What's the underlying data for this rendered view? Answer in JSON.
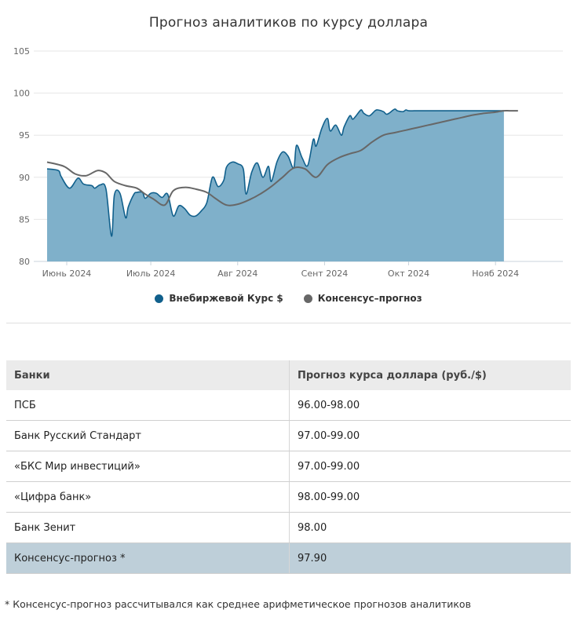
{
  "chart_data": {
    "type": "area+line",
    "title": "Прогноз аналитиков по курсу доллара",
    "ylim": [
      80,
      105
    ],
    "y_ticks": [
      80,
      85,
      90,
      95,
      100,
      105
    ],
    "x_tick_labels": [
      "Июнь 2024",
      "Июль 2024",
      "Авг 2024",
      "Сент 2024",
      "Окт 2024",
      "Нояб 2024"
    ],
    "x_tick_days": [
      7,
      37,
      68,
      99,
      129,
      160
    ],
    "series": [
      {
        "name": "Внебиржевой Курс $",
        "kind": "area",
        "color": "#11608c",
        "fill": "#7fb0ca",
        "x_days": [
          0,
          4,
          5,
          8,
          11,
          13,
          16,
          17,
          19,
          21,
          23,
          24,
          26,
          28,
          29,
          31,
          32,
          34,
          35,
          37,
          39,
          41,
          43,
          45,
          47,
          49,
          51,
          53,
          55,
          57,
          59,
          61,
          63,
          64,
          66,
          68,
          70,
          71,
          73,
          75,
          77,
          79,
          80,
          82,
          84,
          86,
          88,
          89,
          91,
          93,
          95,
          96,
          98,
          100,
          101,
          103,
          105,
          106,
          108,
          109,
          110,
          112,
          113,
          115,
          117,
          118,
          120,
          121,
          122,
          124,
          125,
          127,
          128,
          129,
          131,
          133,
          134,
          136,
          138,
          139,
          141,
          142,
          144,
          145,
          147,
          149,
          150,
          152,
          153,
          155,
          156,
          158,
          159,
          161,
          162,
          163
        ],
        "values": [
          91.0,
          90.8,
          90.1,
          88.7,
          89.9,
          89.2,
          89.0,
          88.7,
          89.1,
          88.6,
          83.0,
          87.9,
          88.1,
          85.2,
          86.5,
          88.0,
          88.2,
          88.2,
          87.5,
          88.1,
          88.1,
          87.6,
          88.0,
          85.4,
          86.6,
          86.3,
          85.5,
          85.4,
          86.0,
          87.0,
          90.0,
          88.9,
          89.6,
          91.2,
          91.8,
          91.6,
          91.0,
          88.0,
          90.6,
          91.7,
          90.0,
          91.3,
          89.5,
          91.8,
          93.0,
          92.5,
          91.1,
          93.8,
          92.3,
          91.4,
          94.5,
          93.7,
          95.8,
          97.0,
          95.5,
          96.2,
          95.0,
          96.0,
          97.3,
          96.9,
          97.2,
          98.0,
          97.6,
          97.3,
          97.9,
          98.0,
          97.8,
          97.5,
          97.6,
          98.1,
          97.9,
          97.8,
          98.0,
          97.9,
          97.9,
          97.9,
          97.9,
          97.9,
          97.9,
          97.9,
          97.9,
          97.9,
          97.9,
          97.9,
          97.9,
          97.9,
          97.9,
          97.9,
          97.9,
          97.9,
          97.9,
          97.9,
          97.9,
          97.9,
          97.9,
          97.9
        ]
      },
      {
        "name": "Консенсус–прогноз",
        "kind": "line",
        "color": "#676767",
        "x_days": [
          0,
          6,
          10,
          14,
          18,
          21,
          24,
          28,
          32,
          35,
          38,
          42,
          45,
          49,
          53,
          57,
          60,
          64,
          68,
          72,
          76,
          80,
          84,
          88,
          92,
          96,
          100,
          104,
          108,
          112,
          116,
          120,
          124,
          128,
          132,
          136,
          140,
          144,
          148,
          152,
          156,
          159,
          161,
          163,
          165,
          168
        ],
        "values": [
          91.8,
          91.3,
          90.4,
          90.2,
          90.8,
          90.5,
          89.5,
          89.0,
          88.7,
          88.0,
          87.4,
          86.7,
          88.4,
          88.8,
          88.6,
          88.2,
          87.5,
          86.7,
          86.8,
          87.3,
          88.0,
          88.9,
          90.0,
          91.1,
          91.0,
          90.0,
          91.5,
          92.3,
          92.8,
          93.2,
          94.2,
          95.0,
          95.3,
          95.6,
          95.9,
          96.2,
          96.5,
          96.8,
          97.1,
          97.4,
          97.6,
          97.7,
          97.8,
          97.9,
          97.9,
          97.9
        ]
      }
    ]
  },
  "table": {
    "headers": [
      "Банки",
      "Прогноз курса доллара (руб./$)"
    ],
    "rows": [
      {
        "bank": "ПСБ",
        "forecast": "96.00-98.00"
      },
      {
        "bank": "Банк Русский Стандарт",
        "forecast": "97.00-99.00"
      },
      {
        "bank": "«БКС Мир инвестиций»",
        "forecast": "97.00-99.00"
      },
      {
        "bank": "«Цифра банк»",
        "forecast": "98.00-99.00"
      },
      {
        "bank": "Банк Зенит",
        "forecast": "98.00"
      },
      {
        "bank": "Консенсус-прогноз *",
        "forecast": "97.90"
      }
    ]
  },
  "footnote": "* Консенсус-прогноз рассчитывался как среднее арифметическое прогнозов аналитиков"
}
